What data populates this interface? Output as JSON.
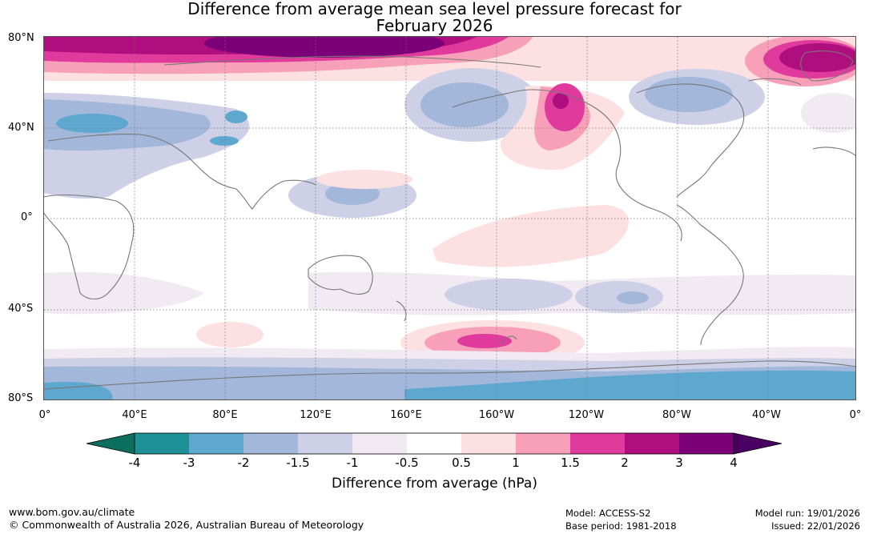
{
  "title": {
    "line1": "Difference from average mean sea level pressure forecast for",
    "line2": "February 2026"
  },
  "latitude_labels": [
    "80°N",
    "40°N",
    "0°",
    "40°S",
    "80°S"
  ],
  "longitude_labels": [
    "0°",
    "40°E",
    "80°E",
    "120°E",
    "160°E",
    "160°W",
    "120°W",
    "80°W",
    "40°W",
    "0°"
  ],
  "colorbar": {
    "ticks": [
      "-4",
      "-3",
      "-2",
      "-1.5",
      "-1",
      "-0.5",
      "0.5",
      "1",
      "1.5",
      "2",
      "3",
      "4"
    ],
    "colors": [
      "#0b6e5e",
      "#1e9196",
      "#5ea8d0",
      "#a3b7da",
      "#cdd0e6",
      "#f1eaf2",
      "#ffffff",
      "#fde0e1",
      "#f8a0b9",
      "#df3a9c",
      "#ae0e7e",
      "#7b0077",
      "#4a0062"
    ],
    "title": "Difference from average (hPa)"
  },
  "footer": {
    "website": "www.bom.gov.au/climate",
    "copyright": "© Commonwealth of Australia 2026, Australian Bureau of Meteorology",
    "model": "Model: ACCESS-S2",
    "base_period": "Base period: 1981-2018",
    "model_run": "Model run: 19/01/2026",
    "issued": "Issued: 22/01/2026"
  },
  "colors": {
    "coastline": "#777777",
    "grid": "#777777",
    "border": "#555555"
  }
}
